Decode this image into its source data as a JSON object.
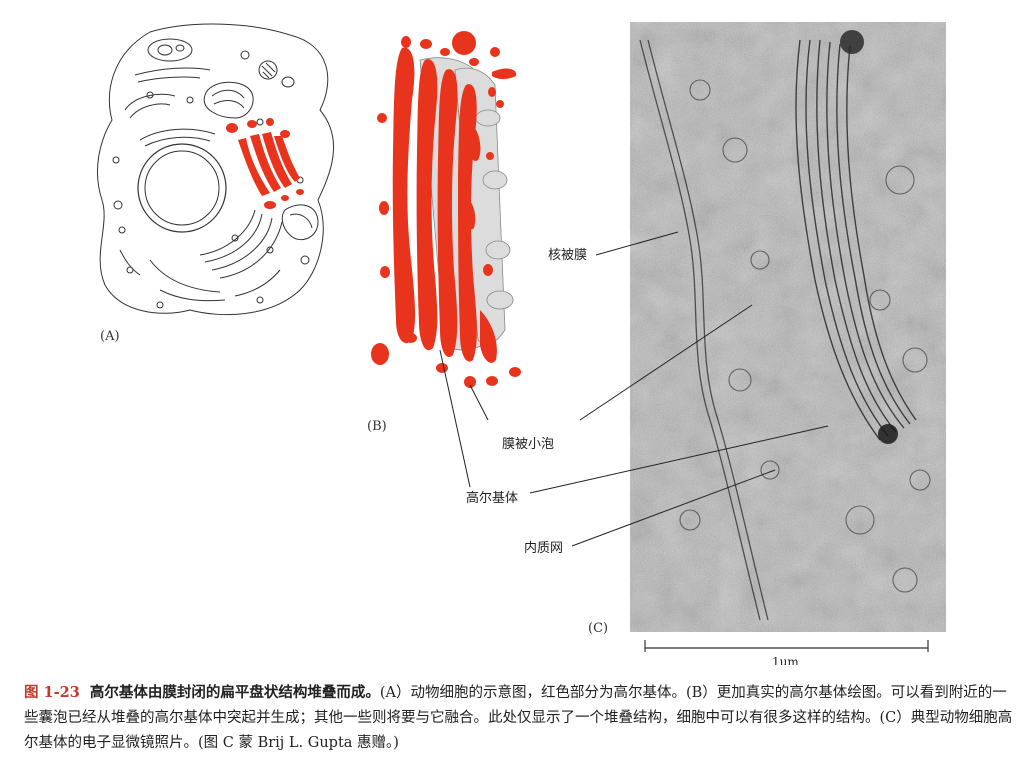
{
  "panels": {
    "a_label": "(A)",
    "b_label": "(B)",
    "c_label": "(C)"
  },
  "callouts": {
    "nuclear_envelope": "核被膜",
    "vesicles": "膜被小泡",
    "golgi": "高尔基体",
    "er": "内质网"
  },
  "scale_bar": {
    "label": "1μm"
  },
  "caption": {
    "figure_number": "图 1-23",
    "title": "高尔基体由膜封闭的扁平盘状结构堆叠而成。",
    "body": "(A）动物细胞的示意图，红色部分为高尔基体。(B）更加真实的高尔基体绘图。可以看到附近的一些囊泡已经从堆叠的高尔基体中突起并生成；其他一些则将要与它融合。此处仅显示了一个堆叠结构，细胞中可以有很多这样的结构。(C）典型动物细胞高尔基体的电子显微镜照片。(图 C 蒙 Brij L. Gupta 惠赠。)"
  },
  "colors": {
    "golgi_red": "#e8341c",
    "outline": "#333333",
    "micrograph_bg": "#b9b9b9"
  }
}
